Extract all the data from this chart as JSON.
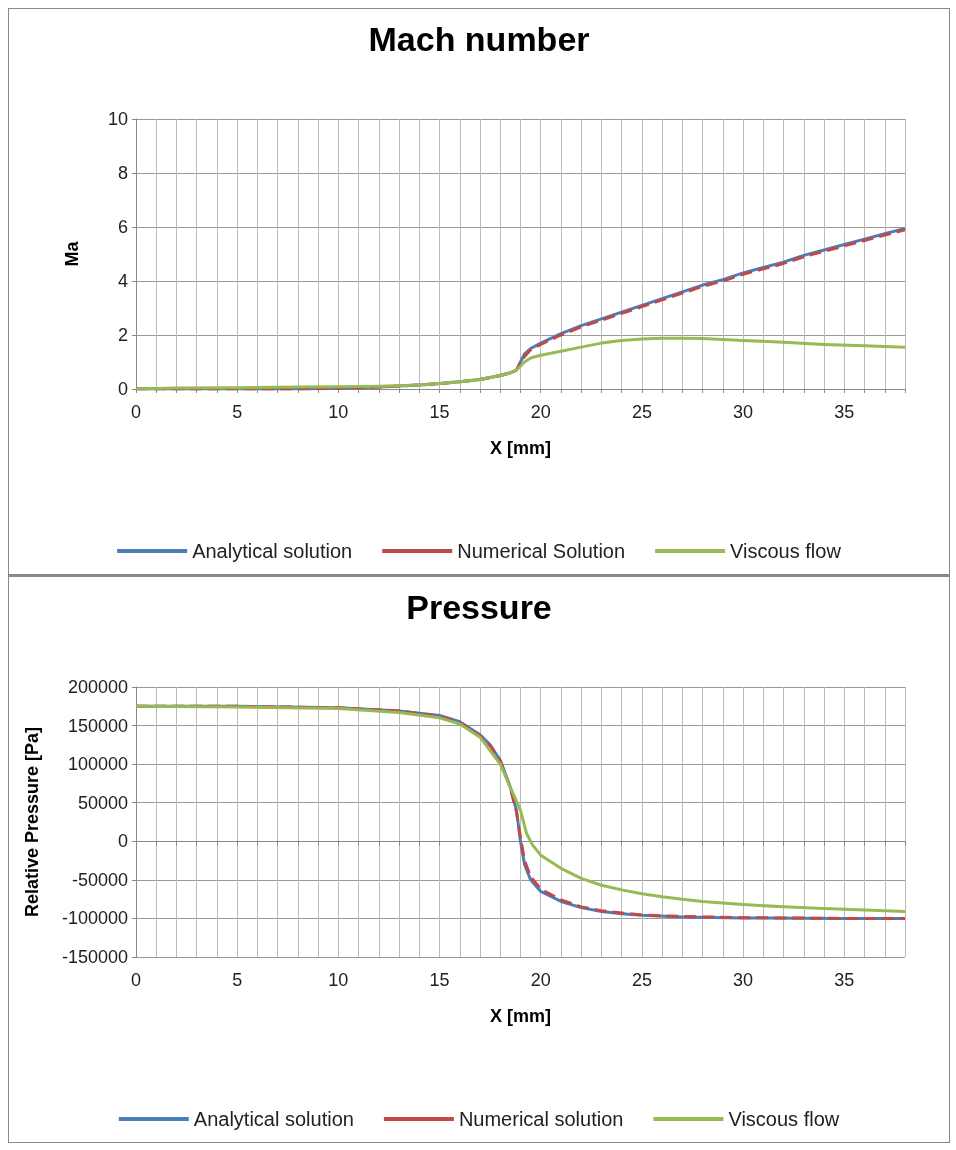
{
  "chart_data": [
    {
      "type": "line",
      "title": "Mach number",
      "xlabel": "X [mm]",
      "ylabel": "Ma",
      "xlim": [
        0,
        38
      ],
      "ylim": [
        0,
        10
      ],
      "yticks": [
        0,
        2,
        4,
        6,
        8,
        10
      ],
      "xticks": [
        0,
        {
          "value": 1,
          "label": null
        },
        {
          "value": 2,
          "label": null
        },
        {
          "value": 3,
          "label": null
        },
        {
          "value": 4,
          "label": null
        },
        5,
        {
          "value": 6,
          "label": null
        },
        {
          "value": 7,
          "label": null
        },
        {
          "value": 8,
          "label": null
        },
        {
          "value": 9,
          "label": null
        },
        10,
        {
          "value": 11,
          "label": null
        },
        {
          "value": 12,
          "label": null
        },
        {
          "value": 13,
          "label": null
        },
        {
          "value": 14,
          "label": null
        },
        15,
        {
          "value": 16,
          "label": null
        },
        {
          "value": 17,
          "label": null
        },
        {
          "value": 18,
          "label": null
        },
        {
          "value": 19,
          "label": null
        },
        20,
        {
          "value": 21,
          "label": null
        },
        {
          "value": 22,
          "label": null
        },
        {
          "value": 23,
          "label": null
        },
        {
          "value": 24,
          "label": null
        },
        25,
        {
          "value": 26,
          "label": null
        },
        {
          "value": 27,
          "label": null
        },
        {
          "value": 28,
          "label": null
        },
        {
          "value": 29,
          "label": null
        },
        30,
        {
          "value": 31,
          "label": null
        },
        {
          "value": 32,
          "label": null
        },
        {
          "value": 33,
          "label": null
        },
        {
          "value": 34,
          "label": null
        },
        35,
        {
          "value": 36,
          "label": null
        },
        {
          "value": 37,
          "label": null
        },
        {
          "value": 38,
          "label": null
        }
      ],
      "grid": true,
      "legend": "bottom",
      "marker": "none",
      "series": [
        {
          "name": "Analytical solution",
          "color": "#4a7ebb",
          "line_style": "solid",
          "x": [
            0,
            5,
            8,
            10,
            12,
            14,
            15,
            16,
            17,
            18,
            18.5,
            18.8,
            19,
            19.2,
            19.5,
            20,
            21,
            22,
            23,
            24,
            25,
            26,
            27,
            28,
            29,
            30,
            31,
            32,
            33,
            34,
            35,
            36,
            37,
            38
          ],
          "values": [
            0,
            0,
            0,
            0.03,
            0.07,
            0.15,
            0.2,
            0.27,
            0.35,
            0.5,
            0.6,
            0.7,
            1.0,
            1.3,
            1.5,
            1.7,
            2.05,
            2.35,
            2.6,
            2.85,
            3.1,
            3.35,
            3.6,
            3.85,
            4.05,
            4.3,
            4.5,
            4.7,
            4.95,
            5.15,
            5.35,
            5.55,
            5.75,
            5.95
          ]
        },
        {
          "name": "Numerical Solution",
          "color": "#be4b48",
          "line_style": "dashed",
          "x": [
            0,
            5,
            8,
            10,
            12,
            14,
            15,
            16,
            17,
            18,
            18.5,
            18.8,
            19,
            19.2,
            19.5,
            20,
            21,
            22,
            23,
            24,
            25,
            26,
            27,
            28,
            29,
            30,
            31,
            32,
            33,
            34,
            35,
            36,
            37,
            38
          ],
          "values": [
            0,
            0,
            0,
            0.03,
            0.07,
            0.15,
            0.2,
            0.27,
            0.35,
            0.5,
            0.6,
            0.7,
            0.95,
            1.2,
            1.45,
            1.65,
            2.0,
            2.3,
            2.55,
            2.8,
            3.05,
            3.3,
            3.55,
            3.8,
            4.0,
            4.25,
            4.45,
            4.65,
            4.9,
            5.1,
            5.3,
            5.5,
            5.7,
            5.9
          ]
        },
        {
          "name": "Viscous flow",
          "color": "#98b954",
          "line_style": "solid",
          "x": [
            0,
            2,
            5,
            8,
            10,
            12,
            14,
            15,
            16,
            17,
            18,
            18.5,
            18.8,
            19,
            19.2,
            19.5,
            20,
            21,
            22,
            23,
            24,
            25,
            26,
            27,
            28,
            29,
            30,
            32,
            34,
            36,
            38
          ],
          "values": [
            0,
            0.04,
            0.05,
            0.07,
            0.08,
            0.1,
            0.15,
            0.2,
            0.27,
            0.35,
            0.5,
            0.6,
            0.7,
            0.85,
            1.0,
            1.15,
            1.25,
            1.4,
            1.55,
            1.7,
            1.8,
            1.85,
            1.88,
            1.88,
            1.87,
            1.83,
            1.8,
            1.73,
            1.65,
            1.6,
            1.55
          ]
        }
      ]
    },
    {
      "type": "line",
      "title": "Pressure",
      "xlabel": "X [mm]",
      "ylabel": "Relative Pressure [Pa]",
      "xlim": [
        0,
        38
      ],
      "ylim": [
        -150000,
        200000
      ],
      "yticks": [
        -150000,
        -100000,
        -50000,
        0,
        50000,
        100000,
        150000,
        200000
      ],
      "xticks": [
        0,
        {
          "value": 1,
          "label": null
        },
        {
          "value": 2,
          "label": null
        },
        {
          "value": 3,
          "label": null
        },
        {
          "value": 4,
          "label": null
        },
        5,
        {
          "value": 6,
          "label": null
        },
        {
          "value": 7,
          "label": null
        },
        {
          "value": 8,
          "label": null
        },
        {
          "value": 9,
          "label": null
        },
        10,
        {
          "value": 11,
          "label": null
        },
        {
          "value": 12,
          "label": null
        },
        {
          "value": 13,
          "label": null
        },
        {
          "value": 14,
          "label": null
        },
        15,
        {
          "value": 16,
          "label": null
        },
        {
          "value": 17,
          "label": null
        },
        {
          "value": 18,
          "label": null
        },
        {
          "value": 19,
          "label": null
        },
        20,
        {
          "value": 21,
          "label": null
        },
        {
          "value": 22,
          "label": null
        },
        {
          "value": 23,
          "label": null
        },
        {
          "value": 24,
          "label": null
        },
        25,
        {
          "value": 26,
          "label": null
        },
        {
          "value": 27,
          "label": null
        },
        {
          "value": 28,
          "label": null
        },
        {
          "value": 29,
          "label": null
        },
        30,
        {
          "value": 31,
          "label": null
        },
        {
          "value": 32,
          "label": null
        },
        {
          "value": 33,
          "label": null
        },
        {
          "value": 34,
          "label": null
        },
        35,
        {
          "value": 36,
          "label": null
        },
        {
          "value": 37,
          "label": null
        },
        {
          "value": 38,
          "label": null
        }
      ],
      "grid": true,
      "legend": "bottom",
      "marker": "none",
      "series": [
        {
          "name": "Analytical solution",
          "color": "#4a7ebb",
          "line_style": "solid",
          "x": [
            0,
            5,
            10,
            13,
            15,
            16,
            17,
            17.5,
            18,
            18.5,
            18.8,
            19,
            19.2,
            19.5,
            20,
            21,
            22,
            23,
            24,
            25,
            27,
            30,
            35,
            38
          ],
          "values": [
            175000,
            175000,
            173000,
            169000,
            163000,
            155000,
            138000,
            125000,
            105000,
            70000,
            40000,
            0,
            -30000,
            -50000,
            -65000,
            -78000,
            -86000,
            -91000,
            -94000,
            -96000,
            -98000,
            -99500,
            -100000,
            -100000
          ]
        },
        {
          "name": "Numerical solution",
          "color": "#be4b48",
          "line_style": "dashed",
          "x": [
            0,
            5,
            10,
            13,
            15,
            16,
            17,
            17.5,
            18,
            18.5,
            18.8,
            19,
            19.2,
            19.5,
            20,
            21,
            22,
            23,
            24,
            25,
            27,
            30,
            35,
            38
          ],
          "values": [
            175000,
            175000,
            173000,
            169000,
            162000,
            154000,
            137000,
            124000,
            104000,
            69000,
            38000,
            5000,
            -25000,
            -46000,
            -62000,
            -76000,
            -85000,
            -90000,
            -93000,
            -95500,
            -97500,
            -99000,
            -100000,
            -100000
          ]
        },
        {
          "name": "Viscous flow",
          "color": "#98b954",
          "line_style": "solid",
          "x": [
            0,
            5,
            10,
            13,
            15,
            16,
            17,
            18,
            18.5,
            19,
            19.3,
            19.6,
            20,
            21,
            22,
            23,
            24,
            25,
            26,
            27,
            28,
            30,
            32,
            34,
            36,
            38
          ],
          "values": [
            175000,
            174000,
            172000,
            167000,
            160000,
            152000,
            135000,
            100000,
            70000,
            40000,
            10000,
            -5000,
            -18000,
            -35000,
            -48000,
            -57000,
            -63000,
            -68000,
            -72000,
            -75000,
            -78000,
            -82000,
            -85000,
            -87000,
            -89000,
            -91000
          ]
        }
      ]
    }
  ]
}
